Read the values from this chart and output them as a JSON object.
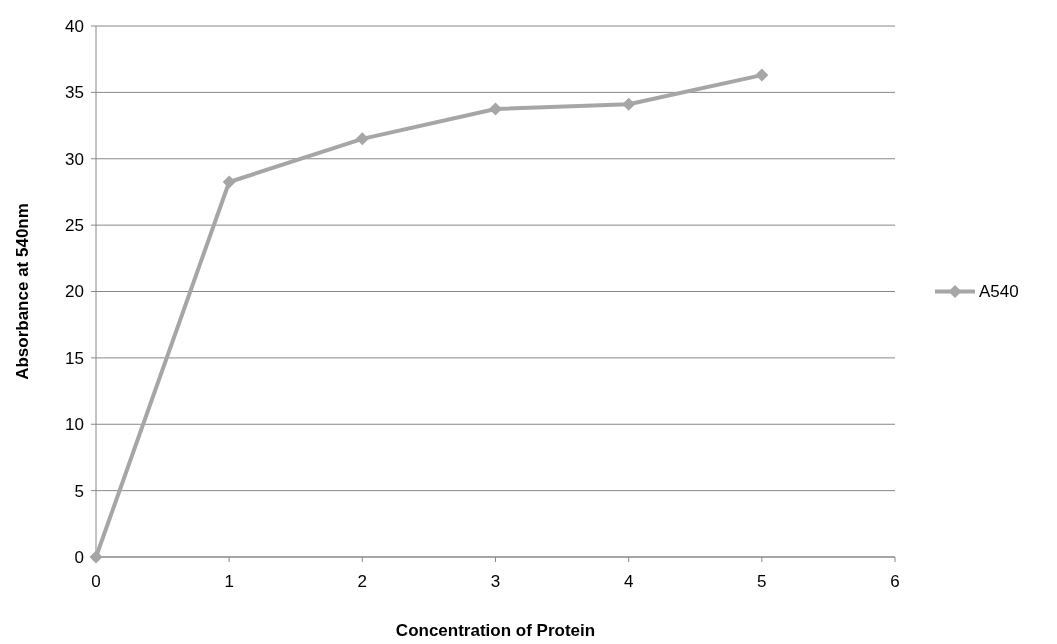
{
  "chart_data": {
    "type": "line",
    "xlabel": "Concentration of Protein",
    "ylabel": "Absorbance at 540nm",
    "x": [
      0,
      1,
      2,
      3,
      4,
      5
    ],
    "series": [
      {
        "name": "A540",
        "color": "#a6a6a6",
        "values": [
          0,
          28.25,
          31.5,
          33.75,
          34.1,
          36.3
        ]
      }
    ],
    "xlim": [
      0,
      6
    ],
    "xticks": [
      0,
      1,
      2,
      3,
      4,
      5,
      6
    ],
    "ylim": [
      0,
      40
    ],
    "yticks": [
      0,
      5,
      10,
      15,
      20,
      25,
      30,
      35,
      40
    ],
    "grid": "y",
    "legend": "right",
    "marker": "diamond",
    "line_style": "solid"
  }
}
